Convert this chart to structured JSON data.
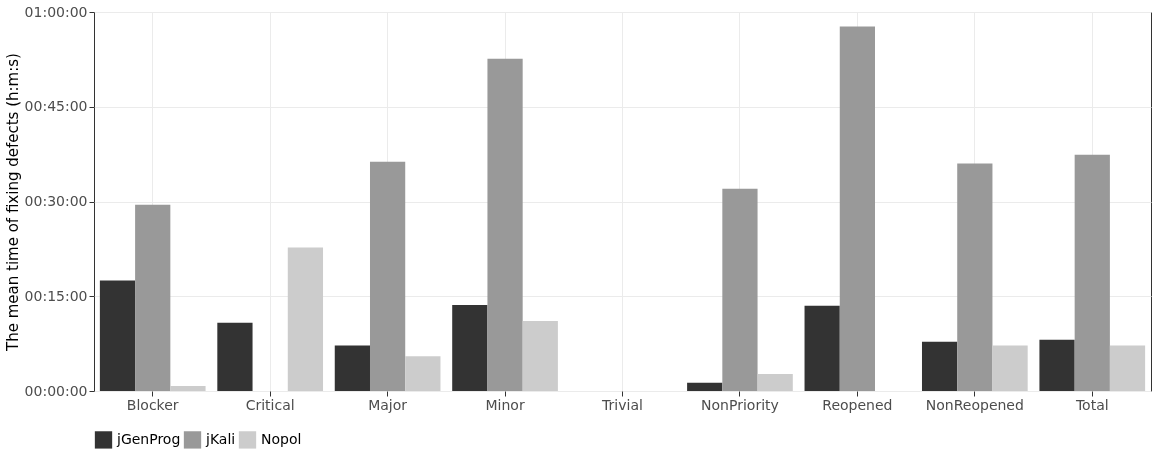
{
  "chart_data": {
    "type": "bar",
    "ylabel": "The mean time of fixing defects (h:m:s)",
    "categories": [
      "Blocker",
      "Critical",
      "Major",
      "Minor",
      "Trivial",
      "NonPriority",
      "Reopened",
      "NonReopened",
      "Total"
    ],
    "series": [
      {
        "name": "jGenProg",
        "color": "#333333",
        "values": [
          17.5,
          10.8,
          7.2,
          13.6,
          0,
          1.3,
          13.5,
          7.8,
          8.1
        ]
      },
      {
        "name": "jKali",
        "color": "#999999",
        "values": [
          29.5,
          0,
          36.3,
          52.6,
          0,
          32.0,
          57.7,
          36.0,
          37.4
        ]
      },
      {
        "name": "Nopol",
        "color": "#cccccc",
        "values": [
          0.8,
          22.7,
          5.5,
          11.1,
          0,
          2.7,
          0,
          7.2,
          7.2
        ]
      }
    ],
    "ylim": [
      0,
      60
    ],
    "yticks": [
      {
        "value": 0,
        "label": "00:00:00"
      },
      {
        "value": 15,
        "label": "00:15:00"
      },
      {
        "value": 30,
        "label": "00:30:00"
      },
      {
        "value": 45,
        "label": "00:45:00"
      },
      {
        "value": 60,
        "label": "01:00:00"
      }
    ],
    "grid": true,
    "legend": "bottom"
  }
}
